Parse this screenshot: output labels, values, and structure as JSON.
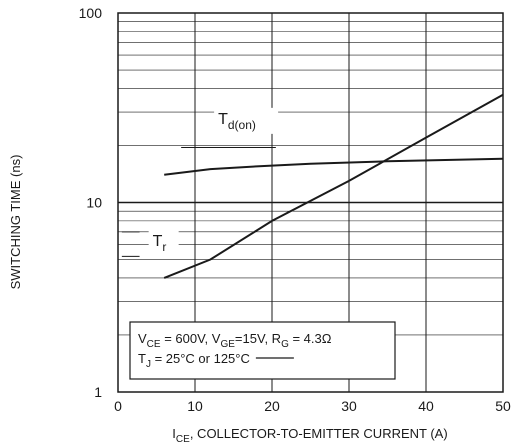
{
  "chart_data": {
    "type": "line",
    "xlabel": {
      "main": "I",
      "sub": "CE",
      "rest": ", COLLECTOR-TO-EMITTER CURRENT (A)"
    },
    "ylabel": "SWITCHING TIME (ns)",
    "xlim": [
      0,
      50
    ],
    "ylim": [
      1,
      100
    ],
    "yscale": "log",
    "x_ticks": [
      0,
      10,
      20,
      30,
      40,
      50
    ],
    "y_ticks": [
      1,
      10,
      100
    ],
    "grid": true,
    "series": [
      {
        "name": "T",
        "sub": "d(on)",
        "x": [
          6,
          12,
          18,
          25,
          35,
          50
        ],
        "y": [
          14,
          15,
          15.5,
          16,
          16.5,
          17
        ]
      },
      {
        "name": "T",
        "sub": "r",
        "x": [
          6,
          12,
          20,
          30,
          40,
          50
        ],
        "y": [
          4,
          5,
          8,
          13,
          22,
          37
        ]
      }
    ],
    "legend_box": {
      "position": "bottom-left",
      "line1": [
        {
          "t": "V"
        },
        {
          "t": "CE",
          "sub": true
        },
        {
          "t": " = 600V, V"
        },
        {
          "t": "GE",
          "sub": true
        },
        {
          "t": "=15V, R"
        },
        {
          "t": "G",
          "sub": true
        },
        {
          "t": " = 4.3Ω"
        }
      ],
      "line2": [
        {
          "t": "T"
        },
        {
          "t": "J",
          "sub": true
        },
        {
          "t": " = 25°C or 125°C"
        }
      ]
    },
    "colors": {
      "line": "#1a1a1a",
      "grid": "#1a1a1a",
      "axis": "#1a1a1a"
    }
  }
}
